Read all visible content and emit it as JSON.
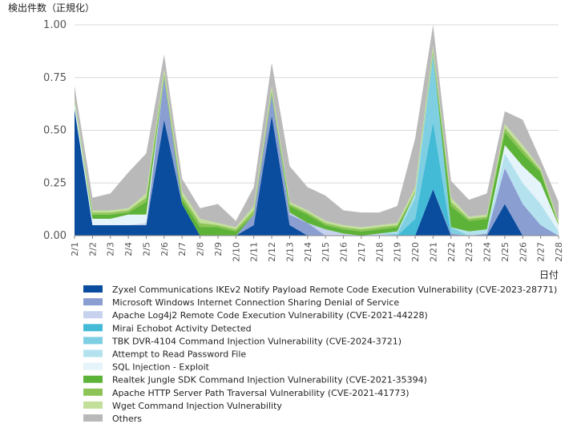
{
  "chart_data": {
    "type": "area",
    "stacked": true,
    "ylabel": "検出件数（正規化）",
    "xlabel": "日付",
    "ylim": [
      0,
      1.0
    ],
    "yticks": [
      "0.00",
      "0.25",
      "0.50",
      "0.75",
      "1.00"
    ],
    "grid": true,
    "legend_position": "bottom",
    "categories": [
      "2/1",
      "2/2",
      "2/3",
      "2/4",
      "2/5",
      "2/6",
      "2/7",
      "2/8",
      "2/9",
      "2/10",
      "2/11",
      "2/12",
      "2/13",
      "2/14",
      "2/15",
      "2/16",
      "2/17",
      "2/18",
      "2/19",
      "2/20",
      "2/21",
      "2/22",
      "2/23",
      "2/24",
      "2/25",
      "2/26",
      "2/27",
      "2/28"
    ],
    "series": [
      {
        "name": "Zyxel Communications IKEv2 Notify Payload Remote Code Execution Vulnerability (CVE-2023-28771)",
        "color": "#0a4c9e",
        "values": [
          0.6,
          0.05,
          0.05,
          0.05,
          0.05,
          0.55,
          0.15,
          0.0,
          0.0,
          0.0,
          0.05,
          0.57,
          0.05,
          0.0,
          0.0,
          0.0,
          0.0,
          0.0,
          0.0,
          0.0,
          0.22,
          0.0,
          0.0,
          0.0,
          0.15,
          0.0,
          0.0,
          0.0
        ]
      },
      {
        "name": "Microsoft Windows Internet Connection Sharing Denial of Service",
        "color": "#8a9ed2",
        "values": [
          0.0,
          0.0,
          0.0,
          0.0,
          0.0,
          0.2,
          0.0,
          0.0,
          0.0,
          0.0,
          0.05,
          0.1,
          0.05,
          0.06,
          0.0,
          0.0,
          0.0,
          0.0,
          0.0,
          0.0,
          0.0,
          0.01,
          0.0,
          0.01,
          0.17,
          0.15,
          0.05,
          0.0
        ]
      },
      {
        "name": "Apache Log4j2 Remote Code Execution Vulnerability (CVE-2021-44228)",
        "color": "#c6d2ee",
        "values": [
          0.0,
          0.0,
          0.0,
          0.0,
          0.01,
          0.0,
          0.0,
          0.0,
          0.0,
          0.0,
          0.0,
          0.0,
          0.01,
          0.0,
          0.03,
          0.01,
          0.0,
          0.01,
          0.0,
          0.0,
          0.0,
          0.0,
          0.0,
          0.0,
          0.01,
          0.0,
          0.0,
          0.0
        ]
      },
      {
        "name": "Mirai Echobot Activity Detected",
        "color": "#44bbd6",
        "values": [
          0.0,
          0.0,
          0.0,
          0.0,
          0.0,
          0.0,
          0.0,
          0.0,
          0.0,
          0.0,
          0.0,
          0.0,
          0.0,
          0.0,
          0.0,
          0.0,
          0.0,
          0.0,
          0.0,
          0.08,
          0.32,
          0.0,
          0.0,
          0.0,
          0.0,
          0.0,
          0.0,
          0.0
        ]
      },
      {
        "name": "TBK DVR-4104 Command Injection Vulnerability (CVE-2024-3721)",
        "color": "#7fcfe3",
        "values": [
          0.0,
          0.0,
          0.0,
          0.0,
          0.0,
          0.0,
          0.0,
          0.0,
          0.0,
          0.0,
          0.0,
          0.0,
          0.0,
          0.0,
          0.0,
          0.0,
          0.0,
          0.0,
          0.01,
          0.1,
          0.32,
          0.03,
          0.0,
          0.0,
          0.0,
          0.0,
          0.0,
          0.0
        ]
      },
      {
        "name": "Attempt to Read Password File",
        "color": "#b3e2ee",
        "values": [
          0.0,
          0.0,
          0.0,
          0.0,
          0.0,
          0.0,
          0.0,
          0.0,
          0.0,
          0.0,
          0.0,
          0.0,
          0.0,
          0.0,
          0.0,
          0.0,
          0.0,
          0.0,
          0.01,
          0.02,
          0.0,
          0.0,
          0.02,
          0.02,
          0.06,
          0.1,
          0.1,
          0.02
        ]
      },
      {
        "name": "SQL Injection - Exploit",
        "color": "#e5f3fa",
        "values": [
          0.03,
          0.03,
          0.03,
          0.05,
          0.04,
          0.0,
          0.0,
          0.0,
          0.0,
          0.0,
          0.0,
          0.0,
          0.0,
          0.0,
          0.0,
          0.0,
          0.0,
          0.0,
          0.0,
          0.0,
          0.0,
          0.0,
          0.0,
          0.0,
          0.04,
          0.08,
          0.1,
          0.03
        ]
      },
      {
        "name": "Realtek Jungle SDK Command Injection Vulnerability (CVE-2021-35394)",
        "color": "#5cb338",
        "values": [
          0.0,
          0.02,
          0.02,
          0.01,
          0.06,
          0.0,
          0.02,
          0.04,
          0.04,
          0.02,
          0.0,
          0.0,
          0.03,
          0.04,
          0.02,
          0.02,
          0.02,
          0.02,
          0.02,
          0.0,
          0.0,
          0.1,
          0.05,
          0.05,
          0.06,
          0.06,
          0.05,
          0.0
        ]
      },
      {
        "name": "Apache HTTP Server Path Traversal Vulnerability (CVE-2021-41773)",
        "color": "#8ec457",
        "values": [
          0.01,
          0.01,
          0.01,
          0.01,
          0.02,
          0.02,
          0.02,
          0.02,
          0.01,
          0.01,
          0.02,
          0.02,
          0.01,
          0.01,
          0.01,
          0.01,
          0.01,
          0.01,
          0.01,
          0.01,
          0.02,
          0.02,
          0.01,
          0.01,
          0.02,
          0.02,
          0.01,
          0.01
        ]
      },
      {
        "name": "Wget Command Injection Vulnerability",
        "color": "#c2e09a",
        "values": [
          0.01,
          0.01,
          0.01,
          0.01,
          0.02,
          0.02,
          0.02,
          0.02,
          0.01,
          0.01,
          0.02,
          0.02,
          0.01,
          0.01,
          0.01,
          0.01,
          0.01,
          0.01,
          0.01,
          0.02,
          0.02,
          0.02,
          0.01,
          0.01,
          0.02,
          0.02,
          0.01,
          0.01
        ]
      },
      {
        "name": "Others",
        "color": "#b9b9b9",
        "values": [
          0.06,
          0.06,
          0.08,
          0.17,
          0.19,
          0.07,
          0.06,
          0.05,
          0.09,
          0.03,
          0.09,
          0.11,
          0.17,
          0.11,
          0.12,
          0.07,
          0.07,
          0.06,
          0.08,
          0.23,
          0.1,
          0.08,
          0.08,
          0.1,
          0.06,
          0.12,
          0.04,
          0.09
        ]
      }
    ]
  }
}
